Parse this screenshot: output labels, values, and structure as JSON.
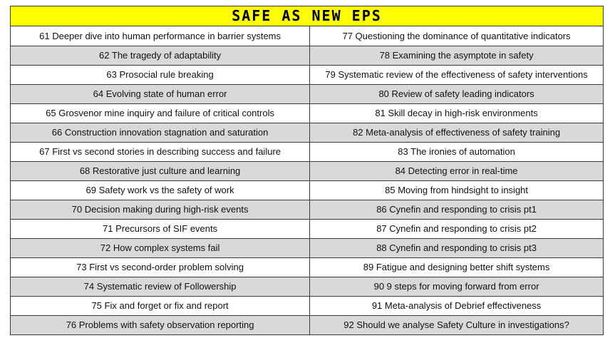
{
  "title": "SAFE AS NEW EPS",
  "rows": [
    {
      "left": "61 Deeper dive into human performance in barrier systems",
      "right": "77 Questioning the dominance of quantitative indicators",
      "shaded": false
    },
    {
      "left": "62 The tragedy of adaptability",
      "right": "78 Examining the asymptote in safety",
      "shaded": true
    },
    {
      "left": "63 Prosocial rule breaking",
      "right": "79 Systematic review of the effectiveness of safety interventions",
      "shaded": false
    },
    {
      "left": "64 Evolving state of human error",
      "right": "80 Review of safety leading indicators",
      "shaded": true
    },
    {
      "left": "65 Grosvenor mine inquiry and failure of critical controls",
      "right": "81 Skill decay in high-risk environments",
      "shaded": false
    },
    {
      "left": "66 Construction innovation stagnation and saturation",
      "right": "82 Meta-analysis of effectiveness of safety training",
      "shaded": true
    },
    {
      "left": "67 First vs second stories in describing success and failure",
      "right": "83 The ironies of automation",
      "shaded": false
    },
    {
      "left": "68 Restorative just culture and learning",
      "right": "84 Detecting error in real-time",
      "shaded": true
    },
    {
      "left": "69 Safety work vs the safety of work",
      "right": "85 Moving from hindsight to insight",
      "shaded": false
    },
    {
      "left": "70 Decision making during high-risk events",
      "right": "86 Cynefin and responding to crisis pt1",
      "shaded": true
    },
    {
      "left": "71 Precursors of SIF events",
      "right": "87 Cynefin and responding to crisis pt2",
      "shaded": false
    },
    {
      "left": "72 How complex systems fail",
      "right": "88 Cynefin and responding to crisis pt3",
      "shaded": true
    },
    {
      "left": "73 First vs second-order problem solving",
      "right": "89 Fatigue and designing better shift systems",
      "shaded": false
    },
    {
      "left": "74 Systematic review of Followership",
      "right": "90 9 steps for moving forward from error",
      "shaded": true
    },
    {
      "left": "75 Fix and forget or fix and report",
      "right": "91 Meta-analysis of Debrief effectiveness",
      "shaded": false
    },
    {
      "left": "76 Problems with safety observation reporting",
      "right": "92 Should we analyse Safety Culture in investigations?",
      "shaded": true
    }
  ],
  "colors": {
    "title_bg": "#ffff00",
    "shaded_row": "#d9d9d9",
    "plain_row": "#ffffff"
  }
}
